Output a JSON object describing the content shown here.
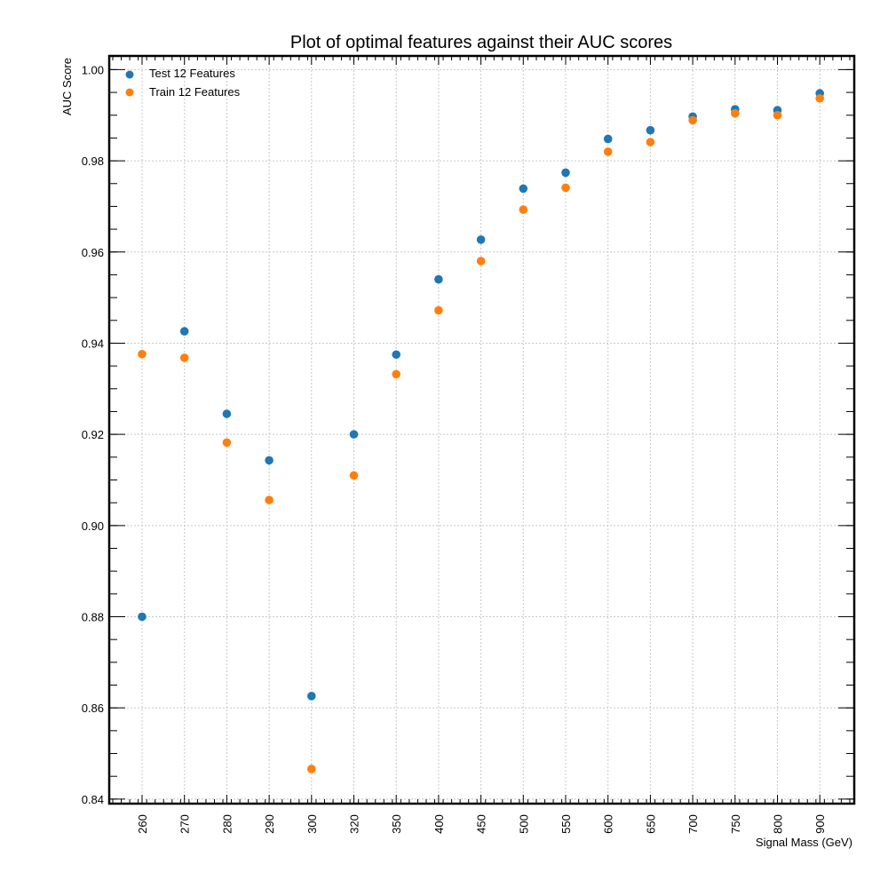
{
  "chart_data": {
    "type": "scatter",
    "title": "Plot of optimal features against their AUC scores",
    "xlabel": "Signal Mass (GeV)",
    "ylabel": "AUC Score",
    "categories": [
      "260",
      "270",
      "280",
      "290",
      "300",
      "320",
      "350",
      "400",
      "450",
      "500",
      "550",
      "600",
      "650",
      "700",
      "750",
      "800",
      "900"
    ],
    "ylim": [
      0.839,
      1.003
    ],
    "yticks": [
      "0.84",
      "0.86",
      "0.88",
      "0.90",
      "0.92",
      "0.94",
      "0.96",
      "0.98",
      "1.00"
    ],
    "grid": true,
    "legend_position": "top-left",
    "series": [
      {
        "name": "Test 12 Features",
        "color": "#1f77b4",
        "values": [
          0.88,
          0.9426,
          0.9245,
          0.9143,
          0.8626,
          0.92,
          0.9375,
          0.954,
          0.9627,
          0.9739,
          0.9774,
          0.9848,
          0.9867,
          0.9897,
          0.9913,
          0.9911,
          0.9948
        ]
      },
      {
        "name": "Train 12 Features",
        "color": "#ff7f0e",
        "values": [
          0.9376,
          0.9368,
          0.9182,
          0.9056,
          0.8466,
          0.911,
          0.9332,
          0.9472,
          0.958,
          0.9693,
          0.9741,
          0.982,
          0.9841,
          0.9889,
          0.9904,
          0.99,
          0.9937
        ]
      }
    ]
  }
}
